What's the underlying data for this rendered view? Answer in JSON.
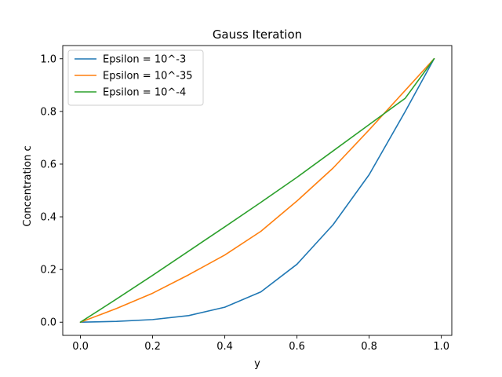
{
  "chart_data": {
    "type": "line",
    "title": "Gauss Iteration",
    "xlabel": "y",
    "ylabel": "Concentration c",
    "xlim": [
      -0.049,
      1.029
    ],
    "ylim": [
      -0.05,
      1.05
    ],
    "xticks": [
      0.0,
      0.2,
      0.4,
      0.6,
      0.8,
      1.0
    ],
    "xtick_labels": [
      "0.0",
      "0.2",
      "0.4",
      "0.6",
      "0.8",
      "1.0"
    ],
    "yticks": [
      0.0,
      0.2,
      0.4,
      0.6,
      0.8,
      1.0
    ],
    "ytick_labels": [
      "0.0",
      "0.2",
      "0.4",
      "0.6",
      "0.8",
      "1.0"
    ],
    "grid": false,
    "legend_position": "top-left",
    "x": [
      0.0,
      0.1,
      0.2,
      0.3,
      0.4,
      0.5,
      0.6,
      0.7,
      0.8,
      0.9,
      0.98
    ],
    "series": [
      {
        "name": "Epsilon = 10^-3",
        "color": "#1f77b4",
        "values": [
          0.0,
          0.003,
          0.01,
          0.025,
          0.057,
          0.115,
          0.22,
          0.37,
          0.56,
          0.8,
          1.0
        ]
      },
      {
        "name": "Epsilon = 10^-35",
        "color": "#ff7f0e",
        "values": [
          0.0,
          0.052,
          0.11,
          0.18,
          0.255,
          0.345,
          0.46,
          0.585,
          0.73,
          0.88,
          1.0
        ]
      },
      {
        "name": "Epsilon = 10^-4",
        "color": "#2ca02c",
        "values": [
          0.0,
          0.088,
          0.178,
          0.27,
          0.362,
          0.455,
          0.55,
          0.65,
          0.75,
          0.85,
          1.0
        ]
      }
    ]
  }
}
